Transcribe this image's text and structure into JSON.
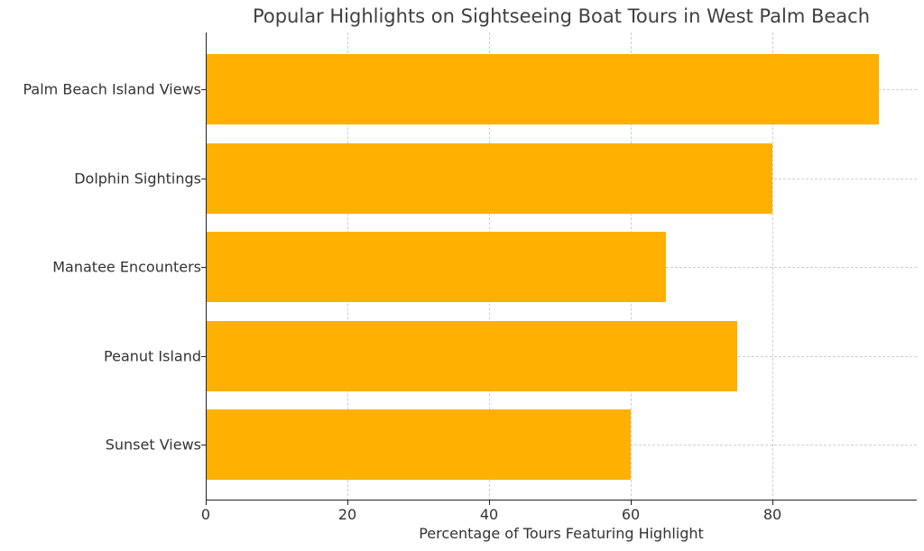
{
  "chart_data": {
    "type": "bar",
    "orientation": "horizontal",
    "title": "Popular Highlights on Sightseeing Boat Tours in West Palm Beach",
    "xlabel": "Percentage of Tours Featuring Highlight",
    "ylabel": "",
    "categories": [
      "Palm Beach Island Views",
      "Dolphin Sightings",
      "Manatee Encounters",
      "Peanut Island",
      "Sunset Views"
    ],
    "values": [
      95,
      80,
      65,
      75,
      60
    ],
    "xlim": [
      0,
      100
    ],
    "xticks": [
      "0",
      "20",
      "40",
      "60",
      "80"
    ],
    "grid": true,
    "bar_color": "#ffb000"
  }
}
